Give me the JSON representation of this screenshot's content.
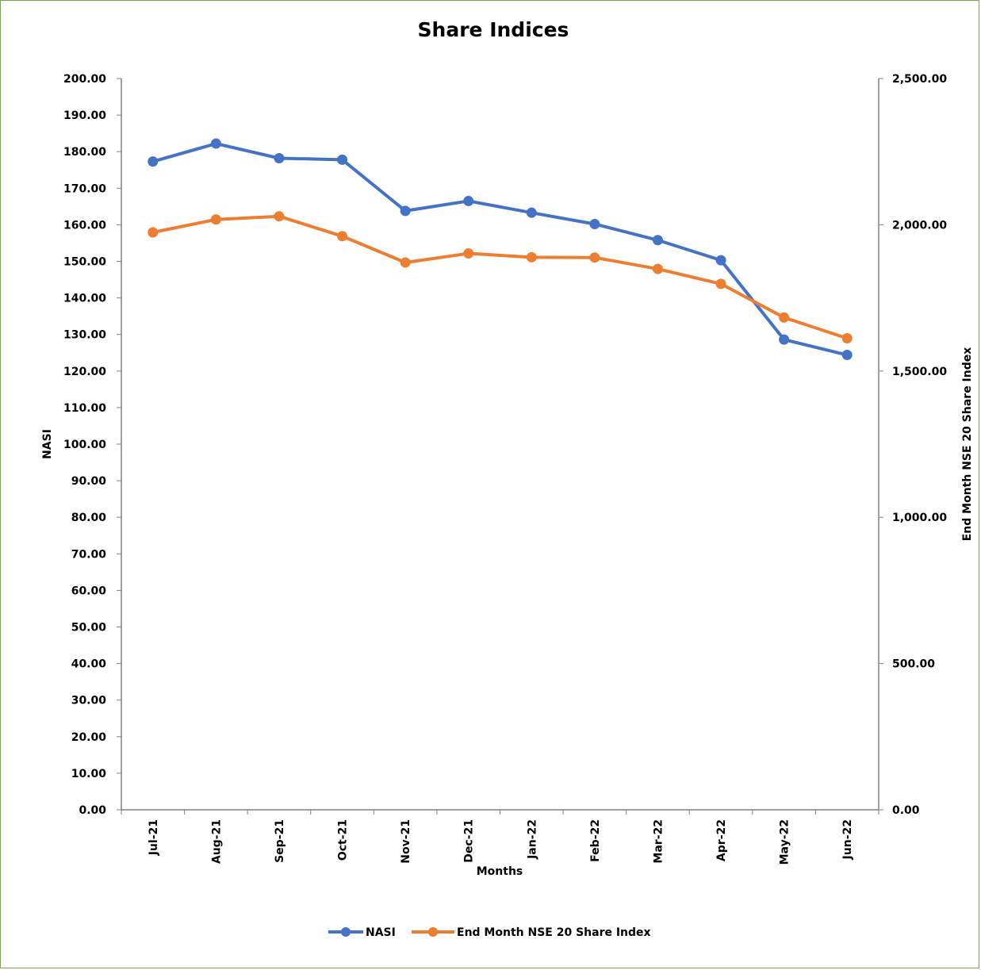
{
  "chart_data": {
    "type": "line",
    "title": "Share Indices",
    "xlabel": "Months",
    "ylabel": "NASI",
    "y2label": "End Month NSE 20 Share Index",
    "categories": [
      "Jul-21",
      "Aug-21",
      "Sep-21",
      "Oct-21",
      "Nov-21",
      "Dec-21",
      "Jan-22",
      "Feb-22",
      "Mar-22",
      "Apr-22",
      "May-22",
      "Jun-22"
    ],
    "ylim": [
      0,
      200
    ],
    "y2lim": [
      0,
      2500
    ],
    "yticks": [
      "0.00",
      "10.00",
      "20.00",
      "30.00",
      "40.00",
      "50.00",
      "60.00",
      "70.00",
      "80.00",
      "90.00",
      "100.00",
      "110.00",
      "120.00",
      "130.00",
      "140.00",
      "150.00",
      "160.00",
      "170.00",
      "180.00",
      "190.00",
      "200.00"
    ],
    "y2ticks": [
      "0.00",
      "500.00",
      "1,000.00",
      "1,500.00",
      "2,000.00",
      "2,500.00"
    ],
    "series": [
      {
        "name": "NASI",
        "axis": "left",
        "color": "#4472c4",
        "values": [
          177.3,
          182.2,
          178.2,
          177.8,
          163.8,
          166.5,
          163.3,
          160.2,
          155.8,
          150.3,
          128.6,
          124.4
        ]
      },
      {
        "name": "End Month NSE 20 Share Index",
        "axis": "right",
        "color": "#ed7d31",
        "values": [
          1974,
          2018,
          2029,
          1961,
          1871,
          1902,
          1889,
          1888,
          1849,
          1798,
          1683,
          1612
        ]
      }
    ],
    "grid": false,
    "legend": "bottom"
  }
}
